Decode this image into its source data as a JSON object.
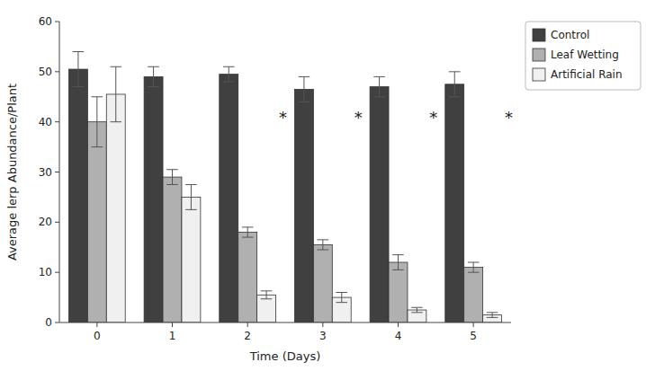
{
  "chart_data": {
    "type": "bar",
    "title": "",
    "xlabel": "Time (Days)",
    "ylabel": "Average lerp Abundance/Plant",
    "categories": [
      0,
      1,
      2,
      3,
      4,
      5
    ],
    "series": [
      {
        "name": "Control",
        "color": "#404040",
        "values": [
          50.5,
          49.0,
          49.5,
          46.5,
          47.0,
          47.5
        ],
        "errors": [
          3.5,
          2.0,
          1.5,
          2.5,
          2.0,
          2.5
        ]
      },
      {
        "name": "Leaf Wetting",
        "color": "#b0b0b0",
        "values": [
          40.0,
          29.0,
          18.0,
          15.5,
          12.0,
          11.0
        ],
        "errors": [
          5.0,
          1.5,
          1.0,
          1.0,
          1.5,
          1.0
        ]
      },
      {
        "name": "Artificial Rain",
        "color": "#f0f0f0",
        "values": [
          45.5,
          25.0,
          5.5,
          5.0,
          2.5,
          1.5
        ],
        "errors": [
          5.5,
          2.5,
          0.8,
          1.0,
          0.5,
          0.5
        ]
      }
    ],
    "ylim": [
      0,
      60
    ],
    "yticks": [
      0,
      10,
      20,
      30,
      40,
      50,
      60
    ],
    "annotations": [
      {
        "text": "*",
        "x": 2,
        "y": 41
      },
      {
        "text": "*",
        "x": 3,
        "y": 41
      },
      {
        "text": "*",
        "x": 4,
        "y": 41
      },
      {
        "text": "*",
        "x": 5,
        "y": 41
      }
    ],
    "grid": false,
    "legend": "upper right"
  }
}
